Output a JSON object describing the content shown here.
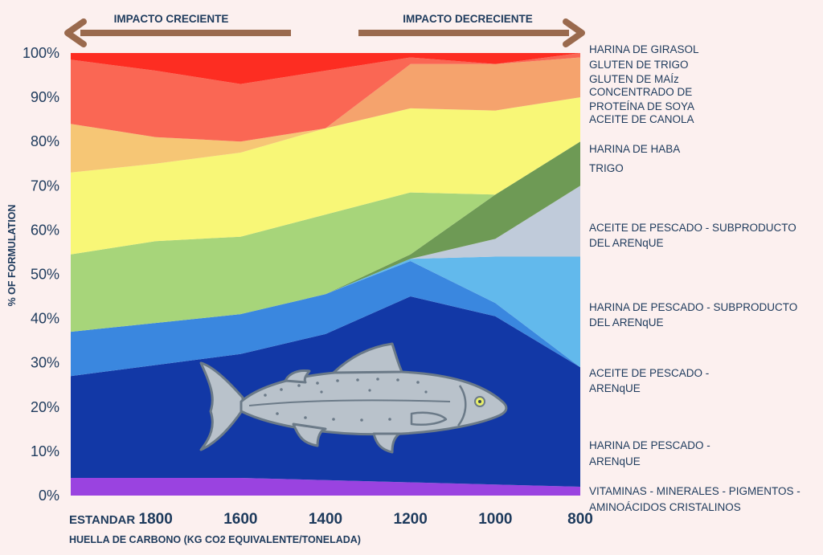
{
  "arrows": {
    "left_label": "IMPACTO CRECIENTE",
    "right_label": "IMPACTO DECRECIENTE",
    "color": "#9a6a4e"
  },
  "chart_data": {
    "type": "area",
    "stacked": true,
    "ylabel": "% OF FORMULATION",
    "xlabel": "HUELLA DE CARBONO (KG CO2 EQUIVALENTE/TONELADA)",
    "categories": [
      "ESTANDAR",
      "1800",
      "1600",
      "1400",
      "1200",
      "1000",
      "800"
    ],
    "ylim": [
      0,
      100
    ],
    "yticks": [
      0,
      10,
      20,
      30,
      40,
      50,
      60,
      70,
      80,
      90,
      100
    ],
    "ytick_labels": [
      "0%",
      "10%",
      "20%",
      "30%",
      "40%",
      "50%",
      "60%",
      "70%",
      "80%",
      "90%",
      "100%"
    ],
    "series": [
      {
        "name": "VITAMINAS - MINERALES - PIGMENTOS - AMINOÁCIDOS CRISTALINOS",
        "color": "#9a43e0",
        "values": [
          4,
          4,
          4,
          3.5,
          3,
          2.5,
          2
        ]
      },
      {
        "name": "HARINA DE PESCADO - ARENqUE",
        "color": "#1238a6",
        "values": [
          23,
          25.5,
          28,
          33,
          42,
          38,
          27
        ]
      },
      {
        "name": "ACEITE DE PESCADO - ARENqUE",
        "color": "#3a87df",
        "values": [
          10,
          9.5,
          9,
          9,
          8,
          3,
          0
        ]
      },
      {
        "name": "HARINA DE PESCADO - SUBPRODUCTO DEL ARENqUE",
        "color": "#62b9ec",
        "values": [
          0,
          0,
          0,
          0,
          0.5,
          10.5,
          25
        ]
      },
      {
        "name": "ACEITE DE PESCADO - SUBPRODUCTO DEL ARENqUE",
        "color": "#c0cbda",
        "values": [
          0,
          0,
          0,
          0,
          0,
          4,
          16
        ]
      },
      {
        "name": "TRIGO",
        "color": "#6e9a55",
        "values": [
          0,
          0,
          0,
          0,
          1,
          10,
          10
        ]
      },
      {
        "name": "HARINA DE HABA",
        "color": "#a7d57a",
        "values": [
          17.5,
          18.5,
          17.5,
          18,
          14,
          0,
          0
        ]
      },
      {
        "name": "ACEITE DE CANOLA",
        "color": "#f8f777",
        "values": [
          18.5,
          17.5,
          19,
          19.5,
          19,
          19,
          10
        ]
      },
      {
        "name": "CONCENTRADO DE PROTEÍNA DE SOYA",
        "color": "#f6c675",
        "values": [
          11,
          6,
          2.5,
          0,
          0,
          0,
          0
        ]
      },
      {
        "name": "GLUTEN DE MAÍz",
        "color": "#f5a36d",
        "values": [
          0,
          0,
          0,
          0,
          10,
          10.5,
          9
        ]
      },
      {
        "name": "GLUTEN DE TRIGO",
        "color": "#fa6754",
        "values": [
          14.5,
          15,
          13,
          13,
          1.5,
          0,
          1
        ]
      },
      {
        "name": "HARINA DE GIRASOL",
        "color": "#fd2d22",
        "values": [
          1.5,
          4,
          7,
          4,
          1,
          2.5,
          0
        ]
      }
    ],
    "legend_placement": "right"
  },
  "fish": {
    "icon": "salmon-fish-icon",
    "body": "#b9c2cb",
    "outline": "#6b7a88"
  }
}
